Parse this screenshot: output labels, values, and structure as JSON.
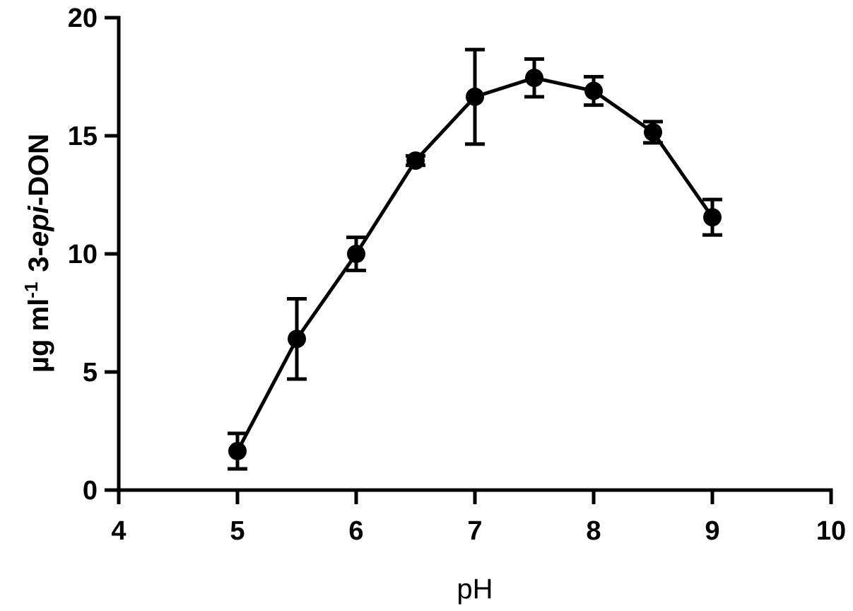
{
  "chart_data": {
    "type": "line",
    "title": "",
    "xlabel": "pH",
    "ylabel": {
      "units": "µg ml",
      "exponent": "-1",
      "compound_prefix": "3-",
      "compound_italic": "epi",
      "compound_suffix": "-DON"
    },
    "xlim": [
      4,
      10
    ],
    "ylim": [
      0,
      20
    ],
    "xticks": [
      4,
      5,
      6,
      7,
      8,
      9,
      10
    ],
    "yticks": [
      0,
      5,
      10,
      15,
      20
    ],
    "grid": false,
    "legend": "none",
    "series": [
      {
        "x": [
          5,
          5.5,
          6,
          6.5,
          7,
          7.5,
          8,
          8.5,
          9
        ],
        "y": [
          1.65,
          6.4,
          10.0,
          13.95,
          16.65,
          17.45,
          16.9,
          15.15,
          11.55
        ],
        "error": [
          0.75,
          1.7,
          0.7,
          0.2,
          2.0,
          0.8,
          0.6,
          0.45,
          0.75
        ]
      }
    ],
    "color": "#000000"
  }
}
